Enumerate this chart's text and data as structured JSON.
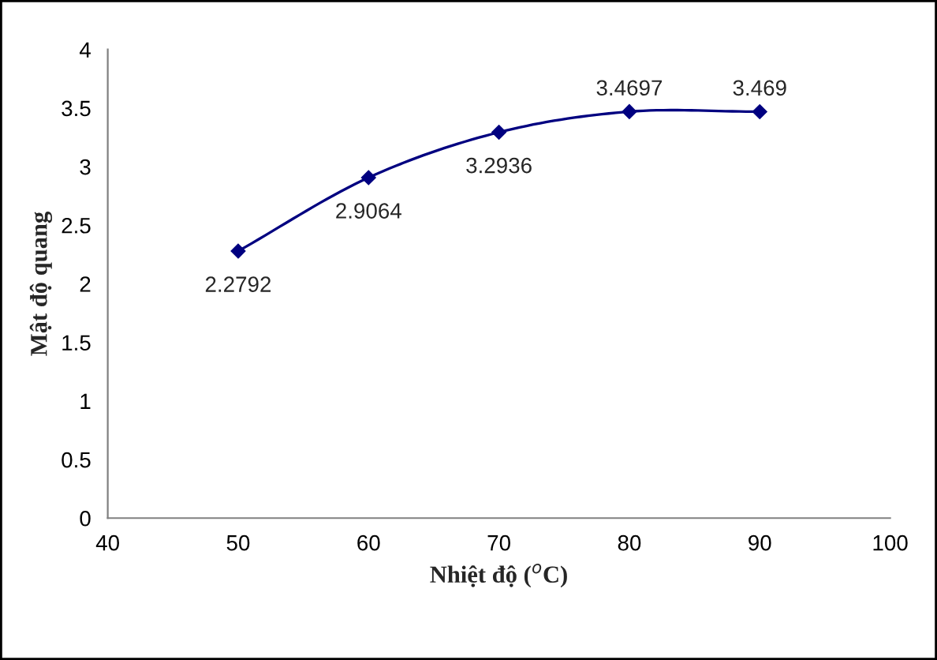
{
  "chart_data": {
    "type": "line",
    "xlabel": "Nhiệt độ ($^{o}$C)",
    "ylabel": "Mật độ quang",
    "x": [
      50,
      60,
      70,
      80,
      90
    ],
    "series": [
      {
        "color": "#000080",
        "values": [
          2.2792,
          2.9064,
          3.2936,
          3.4697,
          3.469
        ]
      }
    ],
    "xlim": [
      40,
      100
    ],
    "xticks": [
      40,
      50,
      60,
      70,
      80,
      90,
      100
    ],
    "ylim": [
      0,
      4
    ],
    "yticks": [
      0,
      0.5,
      1,
      1.5,
      2,
      2.5,
      3,
      3.5,
      4
    ],
    "data_labels": true,
    "marker": "diamond",
    "line_style": "solid",
    "grid": false,
    "legend": false
  }
}
